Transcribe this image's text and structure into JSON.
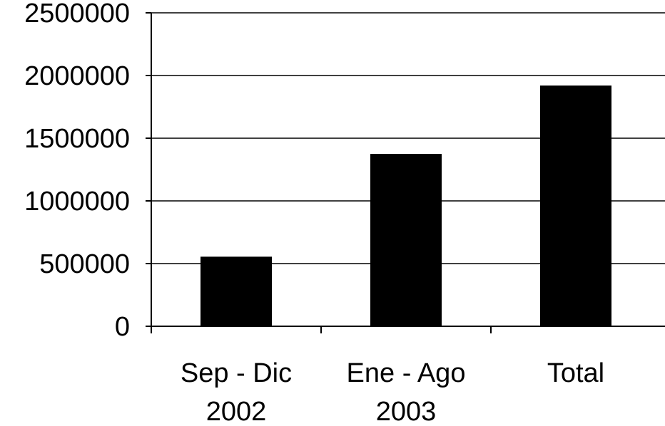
{
  "chart_data": {
    "type": "bar",
    "title": "",
    "xlabel": "",
    "ylabel": "",
    "categories": [
      [
        "Sep - Dic",
        "2002"
      ],
      [
        "Ene - Ago",
        "2003"
      ],
      [
        "Total"
      ]
    ],
    "values": [
      555000,
      1375000,
      1920000
    ],
    "ylim": [
      0,
      2500000
    ],
    "yticks": [
      0,
      500000,
      1000000,
      1500000,
      2000000,
      2500000
    ],
    "ytick_labels": [
      "0",
      "500000",
      "1000000",
      "1500000",
      "2000000",
      "2500000"
    ],
    "grid": true,
    "legend": "none",
    "colors": {
      "bar": "#000000",
      "grid": "#000000",
      "background": "#ffffff"
    }
  }
}
